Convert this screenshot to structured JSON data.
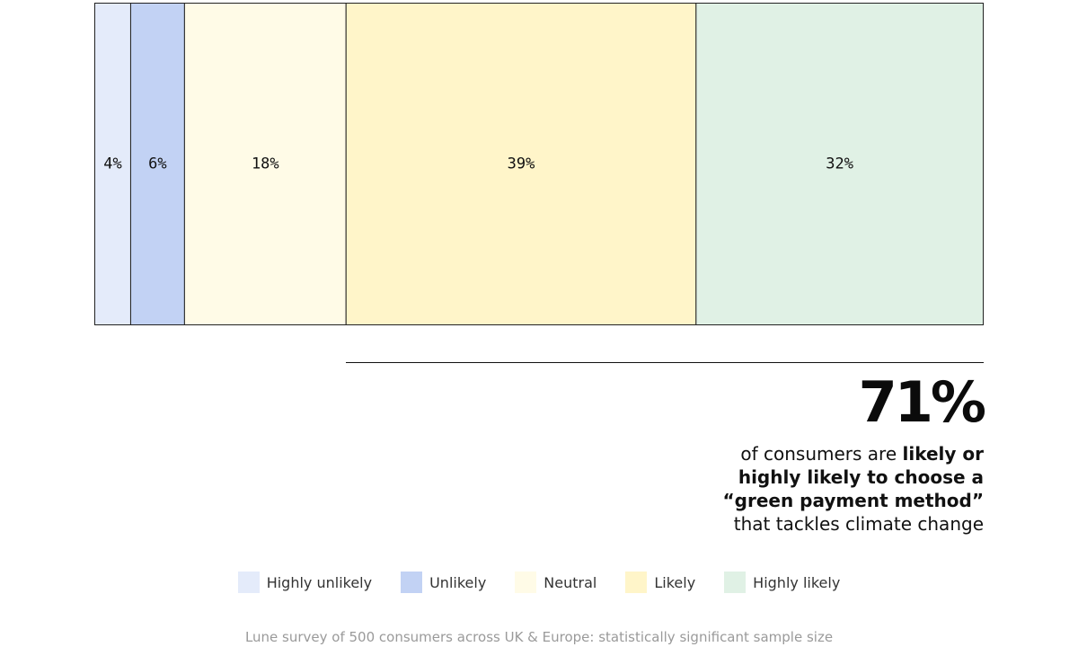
{
  "chart_data": {
    "type": "bar",
    "orientation": "horizontal-stacked",
    "categories": [
      "Highly unlikely",
      "Unlikely",
      "Neutral",
      "Likely",
      "Highly likely"
    ],
    "values": [
      4,
      6,
      18,
      39,
      32
    ],
    "value_labels": [
      "4%",
      "6%",
      "18%",
      "39%",
      "32%"
    ],
    "colors": [
      "#e4ebfa",
      "#c2d2f4",
      "#fffbe7",
      "#fff5c9",
      "#e0f1e5"
    ],
    "legend_position": "bottom",
    "grid": false
  },
  "callout": {
    "big_value": "71%",
    "line1_plain": "of consumers are ",
    "line1_bold": "likely or",
    "line2_bold": "highly likely to choose a",
    "line3_bold": "“green payment method”",
    "line4_plain": "that tackles climate change"
  },
  "legend": {
    "items": [
      {
        "label": "Highly unlikely",
        "color": "#e4ebfa"
      },
      {
        "label": "Unlikely",
        "color": "#c2d2f4"
      },
      {
        "label": "Neutral",
        "color": "#fffbe7"
      },
      {
        "label": "Likely",
        "color": "#fff5c9"
      },
      {
        "label": "Highly likely",
        "color": "#e0f1e5"
      }
    ]
  },
  "source": "Lune survey of 500 consumers across UK & Europe: statistically significant sample size"
}
